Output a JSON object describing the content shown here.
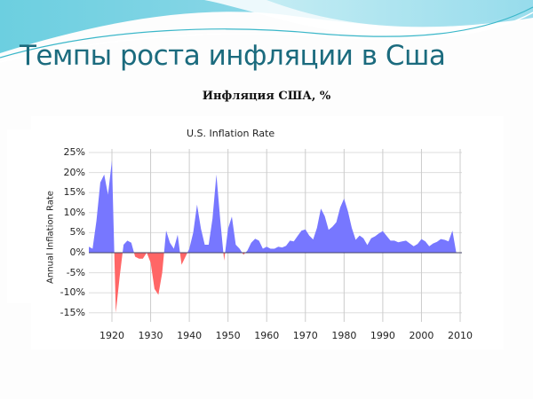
{
  "slide": {
    "title": "Темпы роста инфляции в Сша",
    "subtitle": "Инфляция США, %"
  },
  "colors": {
    "positive": "#7777ff",
    "negative": "#ff6666",
    "title": "#1b6b7e",
    "grid": "#dddddd"
  },
  "chart_data": {
    "type": "area",
    "title": "U.S. Inflation Rate",
    "xlabel": "",
    "ylabel": "Annual Inflation Rate",
    "xlim": [
      1914,
      2010
    ],
    "ylim": [
      -15,
      25
    ],
    "grid": true,
    "legend": "none",
    "x_ticks": [
      "1920",
      "1930",
      "1940",
      "1950",
      "1960",
      "1970",
      "1980",
      "1990",
      "2000",
      "2010"
    ],
    "y_ticks": [
      "25%",
      "20%",
      "15%",
      "10%",
      "5%",
      "0%",
      "-5%",
      "-10%",
      "-15%"
    ],
    "x": [
      1914,
      1915,
      1916,
      1917,
      1918,
      1919,
      1920,
      1921,
      1922,
      1923,
      1924,
      1925,
      1926,
      1927,
      1928,
      1929,
      1930,
      1931,
      1932,
      1933,
      1934,
      1935,
      1936,
      1937,
      1938,
      1939,
      1940,
      1941,
      1942,
      1943,
      1944,
      1945,
      1946,
      1947,
      1948,
      1949,
      1950,
      1951,
      1952,
      1953,
      1954,
      1955,
      1956,
      1957,
      1958,
      1959,
      1960,
      1961,
      1962,
      1963,
      1964,
      1965,
      1966,
      1967,
      1968,
      1969,
      1970,
      1971,
      1972,
      1973,
      1974,
      1975,
      1976,
      1977,
      1978,
      1979,
      1980,
      1981,
      1982,
      1983,
      1984,
      1985,
      1986,
      1987,
      1988,
      1989,
      1990,
      1991,
      1992,
      1993,
      1994,
      1995,
      1996,
      1997,
      1998,
      1999,
      2000,
      2001,
      2002,
      2003,
      2004,
      2005,
      2006,
      2007,
      2008,
      2009
    ],
    "values": [
      1.5,
      1.0,
      8.0,
      17.5,
      19.5,
      14.5,
      23.0,
      -15.0,
      -6.0,
      2.0,
      3.0,
      2.5,
      -1.0,
      -1.5,
      -1.5,
      0.0,
      -2.5,
      -9.0,
      -10.5,
      -5.0,
      5.5,
      2.5,
      1.0,
      4.5,
      -3.0,
      -1.0,
      1.0,
      5.0,
      12.0,
      6.0,
      2.0,
      2.0,
      8.5,
      19.5,
      8.0,
      -2.0,
      6.0,
      9.0,
      2.0,
      1.0,
      -0.5,
      0.5,
      2.5,
      3.5,
      3.0,
      1.0,
      1.5,
      1.0,
      1.0,
      1.5,
      1.3,
      1.7,
      3.0,
      2.8,
      4.2,
      5.5,
      5.8,
      4.3,
      3.3,
      6.2,
      11.0,
      9.1,
      5.7,
      6.5,
      7.6,
      11.3,
      13.5,
      10.3,
      6.2,
      3.2,
      4.3,
      3.6,
      1.9,
      3.6,
      4.1,
      4.8,
      5.4,
      4.2,
      3.0,
      3.0,
      2.6,
      2.8,
      3.0,
      2.3,
      1.6,
      2.2,
      3.4,
      2.8,
      1.6,
      2.3,
      2.7,
      3.4,
      3.2,
      2.8,
      5.5,
      0.0
    ]
  }
}
